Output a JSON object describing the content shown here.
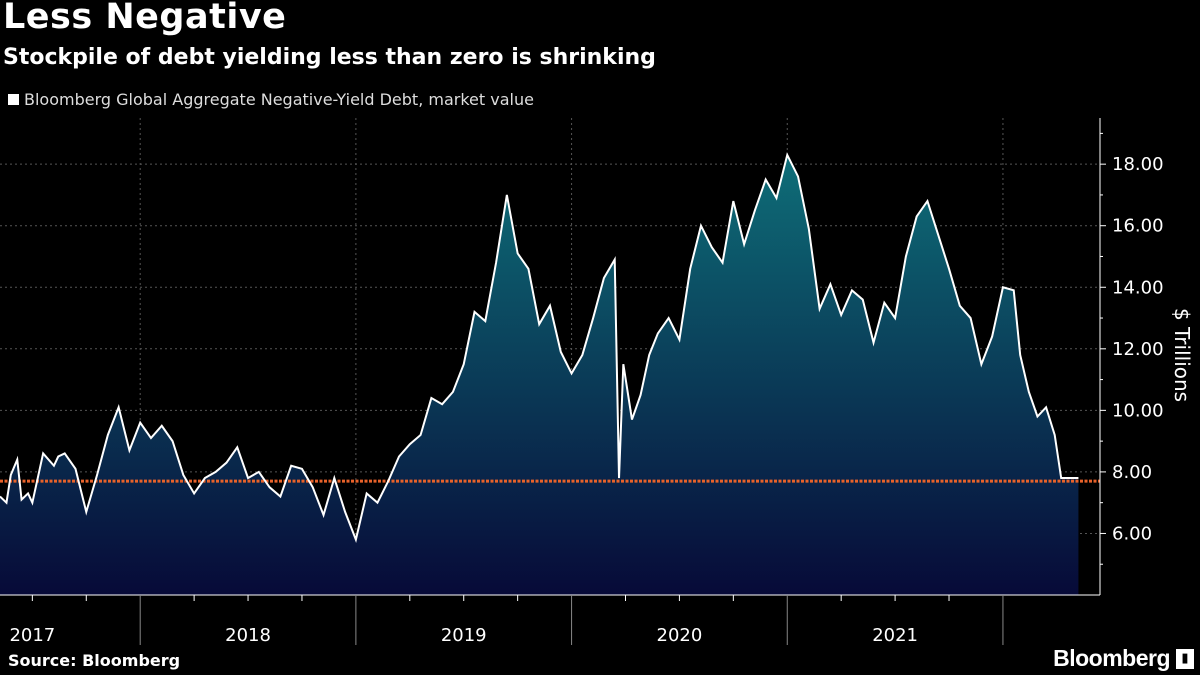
{
  "header": {
    "title": "Less Negative",
    "subtitle": "Stockpile of debt yielding less than zero is shrinking"
  },
  "legend": {
    "label": "Bloomberg Global Aggregate Negative-Yield Debt, market value"
  },
  "footer": {
    "source": "Source: Bloomberg",
    "brand": "Bloomberg"
  },
  "colors": {
    "background": "#000000",
    "line": "#ffffff",
    "area_top": "#0e6e78",
    "area_bottom": "#070a38",
    "reference_line": "#e8622a",
    "grid": "#555555"
  },
  "chart_data": {
    "type": "area",
    "title": "Less Negative",
    "subtitle": "Stockpile of debt yielding less than zero is shrinking",
    "series_name": "Bloomberg Global Aggregate Negative-Yield Debt, market value",
    "ylabel": "$ Trillions",
    "xlabel": "",
    "ylim": [
      4.0,
      19.5
    ],
    "yticks": [
      6,
      8,
      10,
      12,
      14,
      16,
      18
    ],
    "ytick_labels": [
      "6.00",
      "8.00",
      "10.00",
      "12.00",
      "14.00",
      "16.00",
      "18.00"
    ],
    "xlim": [
      2016.85,
      2021.95
    ],
    "year_labels": [
      "2017",
      "2018",
      "2019",
      "2020",
      "2021"
    ],
    "reference_line": 7.7,
    "current_value": 7.8,
    "x": [
      2016.85,
      2016.88,
      2016.9,
      2016.93,
      2016.95,
      2016.98,
      2017.0,
      2017.05,
      2017.1,
      2017.12,
      2017.15,
      2017.2,
      2017.25,
      2017.3,
      2017.35,
      2017.4,
      2017.45,
      2017.5,
      2017.55,
      2017.6,
      2017.65,
      2017.7,
      2017.75,
      2017.8,
      2017.85,
      2017.9,
      2017.95,
      2018.0,
      2018.05,
      2018.1,
      2018.15,
      2018.2,
      2018.25,
      2018.3,
      2018.35,
      2018.4,
      2018.45,
      2018.5,
      2018.55,
      2018.6,
      2018.65,
      2018.7,
      2018.75,
      2018.8,
      2018.85,
      2018.9,
      2018.95,
      2019.0,
      2019.05,
      2019.1,
      2019.15,
      2019.2,
      2019.25,
      2019.3,
      2019.35,
      2019.4,
      2019.45,
      2019.5,
      2019.55,
      2019.6,
      2019.65,
      2019.7,
      2019.72,
      2019.74,
      2019.78,
      2019.82,
      2019.86,
      2019.9,
      2019.95,
      2020.0,
      2020.05,
      2020.1,
      2020.15,
      2020.2,
      2020.25,
      2020.3,
      2020.35,
      2020.4,
      2020.45,
      2020.5,
      2020.55,
      2020.6,
      2020.65,
      2020.7,
      2020.75,
      2020.8,
      2020.85,
      2020.9,
      2020.95,
      2021.0,
      2021.05,
      2021.1,
      2021.15,
      2021.2,
      2021.25,
      2021.3,
      2021.35,
      2021.4,
      2021.45,
      2021.5,
      2021.55,
      2021.58,
      2021.62,
      2021.66,
      2021.7,
      2021.74,
      2021.77,
      2021.8,
      2021.83,
      2021.85
    ],
    "values": [
      7.2,
      7.0,
      7.9,
      8.4,
      7.1,
      7.3,
      7.0,
      8.6,
      8.2,
      8.5,
      8.6,
      8.1,
      6.7,
      7.9,
      9.2,
      10.1,
      8.7,
      9.6,
      9.1,
      9.5,
      9.0,
      7.9,
      7.3,
      7.8,
      8.0,
      8.3,
      8.8,
      7.8,
      8.0,
      7.5,
      7.2,
      8.2,
      8.1,
      7.5,
      6.6,
      7.8,
      6.7,
      5.8,
      7.3,
      7.0,
      7.7,
      8.5,
      8.9,
      9.2,
      10.4,
      10.2,
      10.6,
      11.5,
      13.2,
      12.9,
      14.8,
      17.0,
      15.1,
      14.6,
      12.8,
      13.4,
      11.9,
      11.2,
      11.8,
      13.0,
      14.3,
      14.9,
      7.8,
      11.5,
      9.7,
      10.5,
      11.8,
      12.5,
      13.0,
      12.3,
      14.6,
      16.0,
      15.3,
      14.8,
      16.8,
      15.4,
      16.5,
      17.5,
      16.9,
      18.3,
      17.6,
      15.9,
      13.3,
      14.1,
      13.1,
      13.9,
      13.6,
      12.2,
      13.5,
      13.0,
      15.0,
      16.3,
      16.8,
      15.7,
      14.6,
      13.4,
      13.0,
      11.5,
      12.4,
      14.0,
      13.9,
      11.8,
      10.6,
      9.8,
      10.1,
      9.2,
      7.8,
      7.8,
      7.8,
      7.8
    ]
  }
}
